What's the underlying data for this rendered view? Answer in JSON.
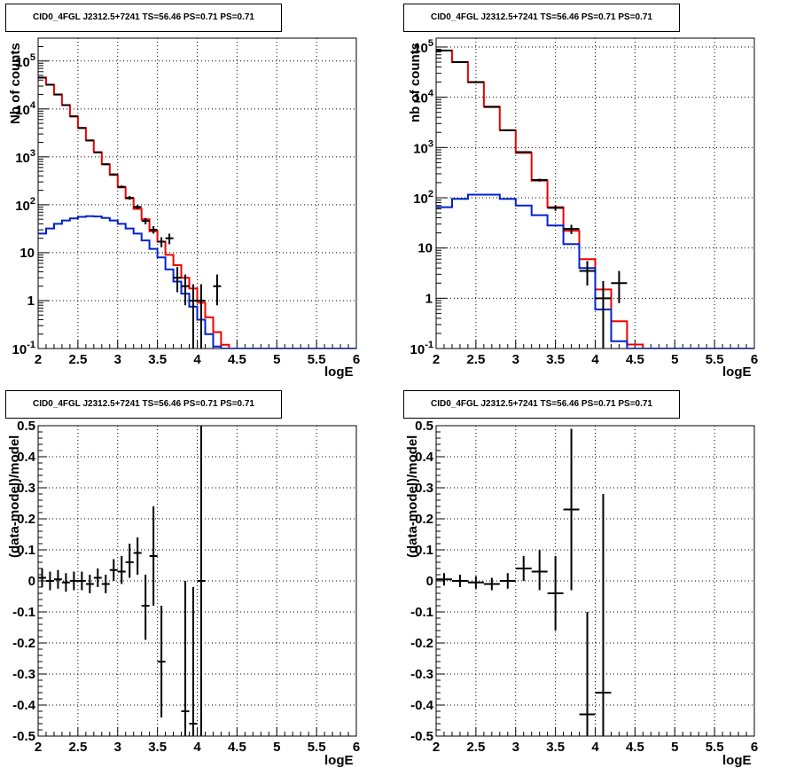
{
  "colors": {
    "data": "#000000",
    "total_model": "#ee0000",
    "source_model": "#0022cc",
    "grid": "#000000"
  },
  "chart_data": [
    {
      "type": "line",
      "title": "CID0_4FGL J2312.5+7241 TS=56.46 PS=0.71 PS=0.71",
      "xlabel": "logE",
      "ylabel": "Nb of counts",
      "xlim": [
        2,
        6
      ],
      "ylim": [
        0.1,
        300000
      ],
      "yscale": "log",
      "grid": true,
      "x_ticks": [
        "2",
        "2.5",
        "3",
        "3.5",
        "4",
        "4.5",
        "5",
        "5.5",
        "6"
      ],
      "y_ticks": [
        {
          "value": 0.1,
          "base": "10",
          "exp": "-1",
          "label": ""
        },
        {
          "value": 1,
          "base": "1",
          "exp": "",
          "label": "1"
        },
        {
          "value": 10,
          "base": "10",
          "exp": "",
          "label": "10"
        },
        {
          "value": 100,
          "base": "10",
          "exp": "2",
          "label": ""
        },
        {
          "value": 1000,
          "base": "10",
          "exp": "3",
          "label": ""
        },
        {
          "value": 10000,
          "base": "10",
          "exp": "4",
          "label": ""
        },
        {
          "value": 100000,
          "base": "10",
          "exp": "5",
          "label": ""
        }
      ],
      "bin_edges": [
        2.0,
        2.1,
        2.2,
        2.3,
        2.4,
        2.5,
        2.6,
        2.7,
        2.8,
        2.9,
        3.0,
        3.1,
        3.2,
        3.3,
        3.4,
        3.5,
        3.6,
        3.7,
        3.8,
        3.9,
        4.0,
        4.1,
        4.2,
        4.3,
        4.4,
        4.5,
        4.6,
        4.7,
        4.8,
        4.9,
        5.0,
        5.1,
        5.2,
        5.3,
        5.4,
        5.5,
        5.6,
        5.7,
        5.8,
        5.9,
        6.0
      ],
      "series": [
        {
          "name": "",
          "role": "total_model",
          "values": [
            45000,
            32000,
            20000,
            12000,
            7000,
            4000,
            2200,
            1250,
            700,
            420,
            230,
            135,
            82,
            50,
            28,
            17,
            9,
            5.5,
            3,
            1.8,
            0.9,
            0.45,
            0.22,
            0.12,
            0.06,
            0.06,
            0.06,
            0.06,
            0.06,
            0.06,
            0.06,
            0.06,
            0.06,
            0.06,
            0.06,
            0.06,
            0.06,
            0.06,
            0.06,
            0.06
          ]
        },
        {
          "name": "",
          "role": "source_model",
          "values": [
            25,
            32,
            40,
            47,
            52,
            56,
            58,
            57,
            53,
            47,
            40,
            32,
            25,
            18,
            12,
            8,
            4.5,
            2.5,
            1.4,
            0.75,
            0.4,
            0.2,
            0.11,
            0.06,
            0.06,
            0.06,
            0.06,
            0.06,
            0.06,
            0.06,
            0.06,
            0.06,
            0.06,
            0.06,
            0.06,
            0.06,
            0.06,
            0.06,
            0.06,
            0.06
          ]
        }
      ],
      "data_points": [
        {
          "x": 2.05,
          "y": 45000,
          "lo": 44000,
          "hi": 46000
        },
        {
          "x": 2.15,
          "y": 32000,
          "lo": 31200,
          "hi": 32800
        },
        {
          "x": 2.25,
          "y": 20000,
          "lo": 19500,
          "hi": 20500
        },
        {
          "x": 2.35,
          "y": 12000,
          "lo": 11700,
          "hi": 12300
        },
        {
          "x": 2.45,
          "y": 7000,
          "lo": 6800,
          "hi": 7200
        },
        {
          "x": 2.55,
          "y": 4000,
          "lo": 3900,
          "hi": 4100
        },
        {
          "x": 2.65,
          "y": 2200,
          "lo": 2140,
          "hi": 2260
        },
        {
          "x": 2.75,
          "y": 1240,
          "lo": 1200,
          "hi": 1280
        },
        {
          "x": 2.85,
          "y": 700,
          "lo": 670,
          "hi": 730
        },
        {
          "x": 2.95,
          "y": 430,
          "lo": 410,
          "hi": 450
        },
        {
          "x": 3.05,
          "y": 237,
          "lo": 222,
          "hi": 252
        },
        {
          "x": 3.15,
          "y": 140,
          "lo": 128,
          "hi": 152
        },
        {
          "x": 3.25,
          "y": 90,
          "lo": 81,
          "hi": 99
        },
        {
          "x": 3.35,
          "y": 46,
          "lo": 39,
          "hi": 53
        },
        {
          "x": 3.45,
          "y": 30,
          "lo": 25,
          "hi": 36
        },
        {
          "x": 3.55,
          "y": 17,
          "lo": 13,
          "hi": 21
        },
        {
          "x": 3.65,
          "y": 20,
          "lo": 15,
          "hi": 25
        },
        {
          "x": 3.75,
          "y": 3,
          "lo": 1.5,
          "hi": 5
        },
        {
          "x": 3.85,
          "y": 2,
          "lo": 0.8,
          "hi": 3.5
        },
        {
          "x": 3.95,
          "y": 1,
          "lo": 0.1,
          "hi": 2.2
        },
        {
          "x": 4.05,
          "y": 1,
          "lo": 0.1,
          "hi": 2.2
        },
        {
          "x": 4.25,
          "y": 2,
          "lo": 0.8,
          "hi": 3.5
        }
      ]
    },
    {
      "type": "line",
      "title": "CID0_4FGL J2312.5+7241 TS=56.46 PS=0.71 PS=0.71",
      "xlabel": "logE",
      "ylabel": "nb of counts",
      "xlim": [
        2,
        6
      ],
      "ylim": [
        0.1,
        150000
      ],
      "yscale": "log",
      "grid": true,
      "x_ticks": [
        "2",
        "2.5",
        "3",
        "3.5",
        "4",
        "4.5",
        "5",
        "5.5",
        "6"
      ],
      "y_ticks": [
        {
          "value": 0.1,
          "base": "10",
          "exp": "-1",
          "label": ""
        },
        {
          "value": 1,
          "base": "1",
          "exp": "",
          "label": "1"
        },
        {
          "value": 10,
          "base": "10",
          "exp": "",
          "label": "10"
        },
        {
          "value": 100,
          "base": "10",
          "exp": "2",
          "label": ""
        },
        {
          "value": 1000,
          "base": "10",
          "exp": "3",
          "label": ""
        },
        {
          "value": 10000,
          "base": "10",
          "exp": "4",
          "label": ""
        },
        {
          "value": 100000,
          "base": "10",
          "exp": "5",
          "label": ""
        }
      ],
      "bin_edges": [
        2.0,
        2.2,
        2.4,
        2.6,
        2.8,
        3.0,
        3.2,
        3.4,
        3.6,
        3.8,
        4.0,
        4.2,
        4.4,
        4.6,
        4.8,
        5.0,
        5.2,
        5.4,
        5.6,
        5.8,
        6.0
      ],
      "series": [
        {
          "name": "",
          "role": "total_model",
          "values": [
            85000,
            50000,
            20000,
            6500,
            2200,
            780,
            220,
            65,
            22,
            6,
            1.5,
            0.35,
            0.12,
            0.09,
            0.09,
            0.09,
            0.09,
            0.09,
            0.09,
            0.09
          ]
        },
        {
          "name": "",
          "role": "source_model",
          "values": [
            65,
            95,
            115,
            115,
            95,
            70,
            45,
            28,
            12,
            4,
            0.6,
            0.14,
            0.09,
            0.09,
            0.09,
            0.09,
            0.09,
            0.09,
            0.09,
            0.09
          ]
        }
      ],
      "data_points": [
        {
          "x": 2.1,
          "y": 85000,
          "lo": 84000,
          "hi": 86000
        },
        {
          "x": 2.3,
          "y": 50000,
          "lo": 49300,
          "hi": 50700
        },
        {
          "x": 2.5,
          "y": 20000,
          "lo": 19700,
          "hi": 20300
        },
        {
          "x": 2.7,
          "y": 6400,
          "lo": 6250,
          "hi": 6550
        },
        {
          "x": 2.9,
          "y": 2200,
          "lo": 2130,
          "hi": 2270
        },
        {
          "x": 3.1,
          "y": 810,
          "lo": 780,
          "hi": 840
        },
        {
          "x": 3.3,
          "y": 225,
          "lo": 210,
          "hi": 240
        },
        {
          "x": 3.5,
          "y": 63,
          "lo": 55,
          "hi": 71
        },
        {
          "x": 3.7,
          "y": 24,
          "lo": 19,
          "hi": 29
        },
        {
          "x": 3.9,
          "y": 3.5,
          "lo": 1.8,
          "hi": 5.5
        },
        {
          "x": 4.1,
          "y": 1,
          "lo": 0.1,
          "hi": 2.2
        },
        {
          "x": 4.3,
          "y": 2,
          "lo": 0.8,
          "hi": 3.5
        }
      ]
    },
    {
      "type": "scatter",
      "title": "CID0_4FGL J2312.5+7241 TS=56.46 PS=0.71 PS=0.71",
      "xlabel": "logE",
      "ylabel": "(data-model)/model",
      "xlim": [
        2,
        6
      ],
      "ylim": [
        -0.5,
        0.5
      ],
      "grid": true,
      "x_ticks": [
        "2",
        "2.5",
        "3",
        "3.5",
        "4",
        "4.5",
        "5",
        "5.5",
        "6"
      ],
      "y_ticks": [
        "-0.5",
        "-0.4",
        "-0.3",
        "-0.2",
        "-0.1",
        "0",
        "0.1",
        "0.2",
        "0.3",
        "0.4",
        "0.5"
      ],
      "y_tick_values": [
        -0.5,
        -0.4,
        -0.3,
        -0.2,
        -0.1,
        0,
        0.1,
        0.2,
        0.3,
        0.4,
        0.5
      ],
      "bin_half_width": 0.05,
      "data_points": [
        {
          "x": 2.05,
          "y": 0.01,
          "lo": -0.02,
          "hi": 0.04
        },
        {
          "x": 2.15,
          "y": 0.0,
          "lo": -0.03,
          "hi": 0.03
        },
        {
          "x": 2.25,
          "y": 0.005,
          "lo": -0.025,
          "hi": 0.035
        },
        {
          "x": 2.35,
          "y": -0.005,
          "lo": -0.035,
          "hi": 0.025
        },
        {
          "x": 2.45,
          "y": 0.0,
          "lo": -0.03,
          "hi": 0.03
        },
        {
          "x": 2.55,
          "y": 0.0,
          "lo": -0.03,
          "hi": 0.03
        },
        {
          "x": 2.65,
          "y": -0.01,
          "lo": -0.04,
          "hi": 0.02
        },
        {
          "x": 2.75,
          "y": 0.01,
          "lo": -0.02,
          "hi": 0.04
        },
        {
          "x": 2.85,
          "y": -0.01,
          "lo": -0.04,
          "hi": 0.02
        },
        {
          "x": 2.95,
          "y": 0.035,
          "lo": 0.0,
          "hi": 0.07
        },
        {
          "x": 3.05,
          "y": 0.03,
          "lo": -0.01,
          "hi": 0.08
        },
        {
          "x": 3.15,
          "y": 0.06,
          "lo": 0.01,
          "hi": 0.12
        },
        {
          "x": 3.25,
          "y": 0.09,
          "lo": 0.02,
          "hi": 0.14
        },
        {
          "x": 3.35,
          "y": -0.08,
          "lo": -0.19,
          "hi": 0.02
        },
        {
          "x": 3.45,
          "y": 0.08,
          "lo": -0.08,
          "hi": 0.24
        },
        {
          "x": 3.55,
          "y": -0.26,
          "lo": -0.44,
          "hi": -0.08
        },
        {
          "x": 3.85,
          "y": -0.42,
          "lo": -0.5,
          "hi": 0.0
        },
        {
          "x": 3.95,
          "y": -0.46,
          "lo": -0.5,
          "hi": -0.02
        },
        {
          "x": 4.05,
          "y": 0.0,
          "lo": -0.5,
          "hi": 0.5
        }
      ]
    },
    {
      "type": "scatter",
      "title": "CID0_4FGL J2312.5+7241 TS=56.46 PS=0.71 PS=0.71",
      "xlabel": "logE",
      "ylabel": "(data-model)/model",
      "xlim": [
        2,
        6
      ],
      "ylim": [
        -0.5,
        0.5
      ],
      "grid": true,
      "x_ticks": [
        "2",
        "2.5",
        "3",
        "3.5",
        "4",
        "4.5",
        "5",
        "5.5",
        "6"
      ],
      "y_ticks": [
        "-0.5",
        "-0.4",
        "-0.3",
        "-0.2",
        "-0.1",
        "0",
        "0.1",
        "0.2",
        "0.3",
        "0.4",
        "0.5"
      ],
      "y_tick_values": [
        -0.5,
        -0.4,
        -0.3,
        -0.2,
        -0.1,
        0,
        0.1,
        0.2,
        0.3,
        0.4,
        0.5
      ],
      "bin_half_width": 0.1,
      "data_points": [
        {
          "x": 2.1,
          "y": 0.005,
          "lo": -0.015,
          "hi": 0.025
        },
        {
          "x": 2.3,
          "y": 0.0,
          "lo": -0.02,
          "hi": 0.02
        },
        {
          "x": 2.5,
          "y": -0.005,
          "lo": -0.025,
          "hi": 0.015
        },
        {
          "x": 2.7,
          "y": -0.01,
          "lo": -0.03,
          "hi": 0.01
        },
        {
          "x": 2.9,
          "y": 0.0,
          "lo": -0.025,
          "hi": 0.025
        },
        {
          "x": 3.1,
          "y": 0.04,
          "lo": 0.0,
          "hi": 0.08
        },
        {
          "x": 3.3,
          "y": 0.03,
          "lo": -0.03,
          "hi": 0.1
        },
        {
          "x": 3.5,
          "y": -0.04,
          "lo": -0.16,
          "hi": 0.08
        },
        {
          "x": 3.7,
          "y": 0.23,
          "lo": -0.03,
          "hi": 0.49
        },
        {
          "x": 3.9,
          "y": -0.43,
          "lo": -0.5,
          "hi": -0.1
        },
        {
          "x": 4.1,
          "y": -0.36,
          "lo": -0.5,
          "hi": 0.28
        }
      ]
    }
  ]
}
